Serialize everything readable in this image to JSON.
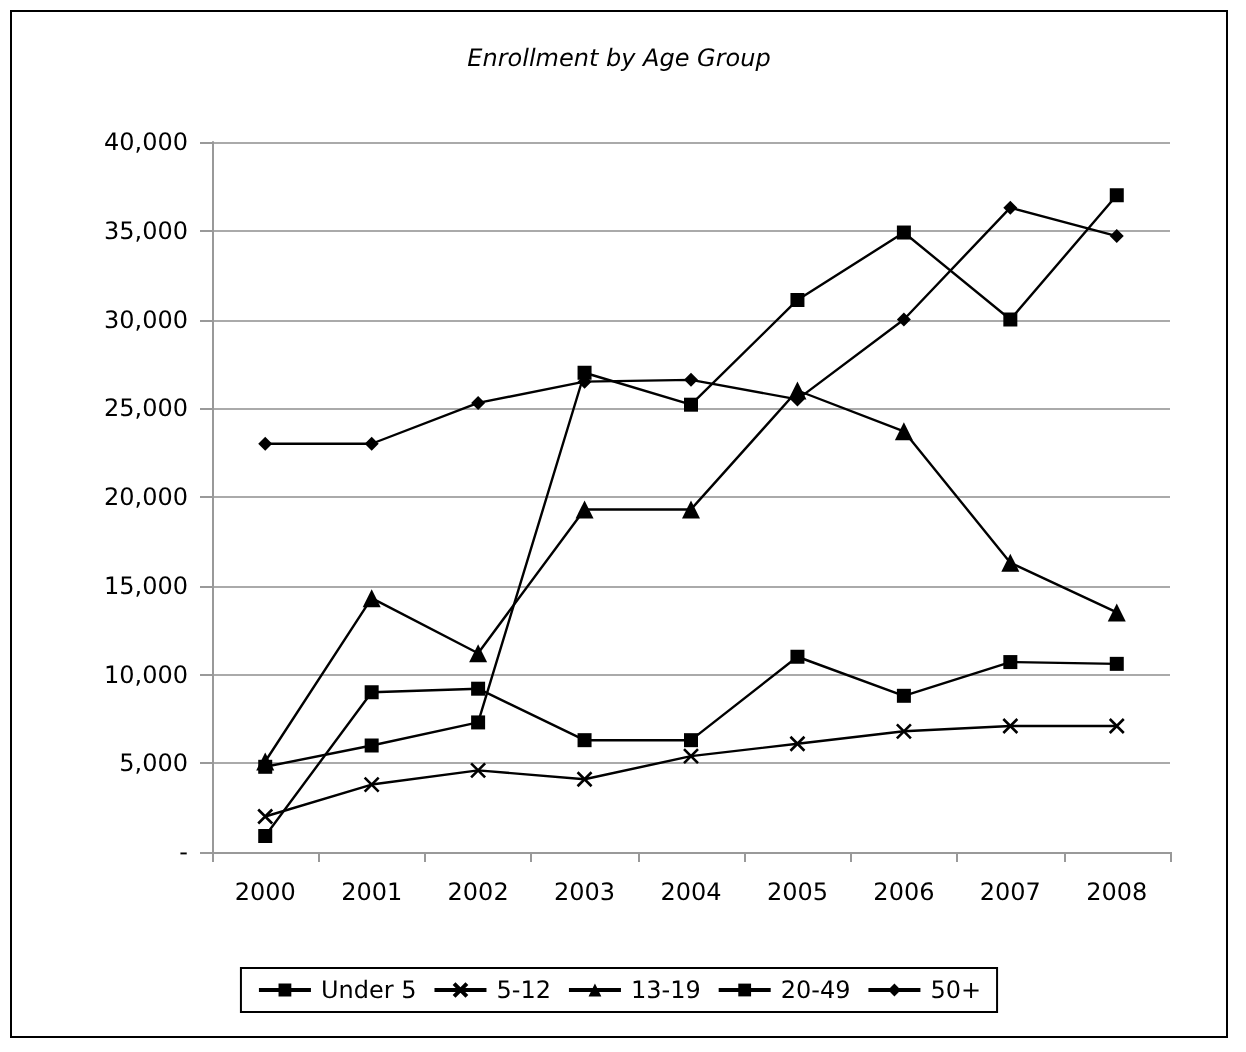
{
  "chart_data": {
    "type": "line",
    "title": "Enrollment by Age Group",
    "categories": [
      "2000",
      "2001",
      "2002",
      "2003",
      "2004",
      "2005",
      "2006",
      "2007",
      "2008"
    ],
    "series": [
      {
        "name": "Under 5",
        "color": "#000000",
        "marker": "square",
        "values": [
          900,
          9000,
          9200,
          6300,
          6300,
          11000,
          8800,
          10700,
          10600
        ]
      },
      {
        "name": "5-12",
        "color": "#000000",
        "marker": "cross",
        "values": [
          2000,
          3800,
          4600,
          4100,
          5400,
          6100,
          6800,
          7100,
          7100
        ]
      },
      {
        "name": "13-19",
        "color": "#000000",
        "marker": "triangle",
        "values": [
          5100,
          14300,
          11200,
          19300,
          19300,
          26000,
          23700,
          16300,
          13500
        ]
      },
      {
        "name": "20-49",
        "color": "#000000",
        "marker": "square",
        "values": [
          4800,
          6000,
          7300,
          27000,
          25200,
          31100,
          34900,
          30000,
          37000
        ]
      },
      {
        "name": "50+",
        "color": "#000000",
        "marker": "diamond",
        "values": [
          23000,
          23000,
          25300,
          26500,
          26600,
          25500,
          30000,
          36300,
          34700
        ]
      }
    ],
    "ylim": [
      0,
      40000
    ],
    "yticks": [
      {
        "value": 0,
        "label": "-"
      },
      {
        "value": 5000,
        "label": "5,000"
      },
      {
        "value": 10000,
        "label": "10,000"
      },
      {
        "value": 15000,
        "label": "15,000"
      },
      {
        "value": 20000,
        "label": "20,000"
      },
      {
        "value": 25000,
        "label": "25,000"
      },
      {
        "value": 30000,
        "label": "30,000"
      },
      {
        "value": 35000,
        "label": "35,000"
      },
      {
        "value": 40000,
        "label": "40,000"
      }
    ],
    "grid": "y",
    "legend": "bottom",
    "line_style": "solid"
  }
}
